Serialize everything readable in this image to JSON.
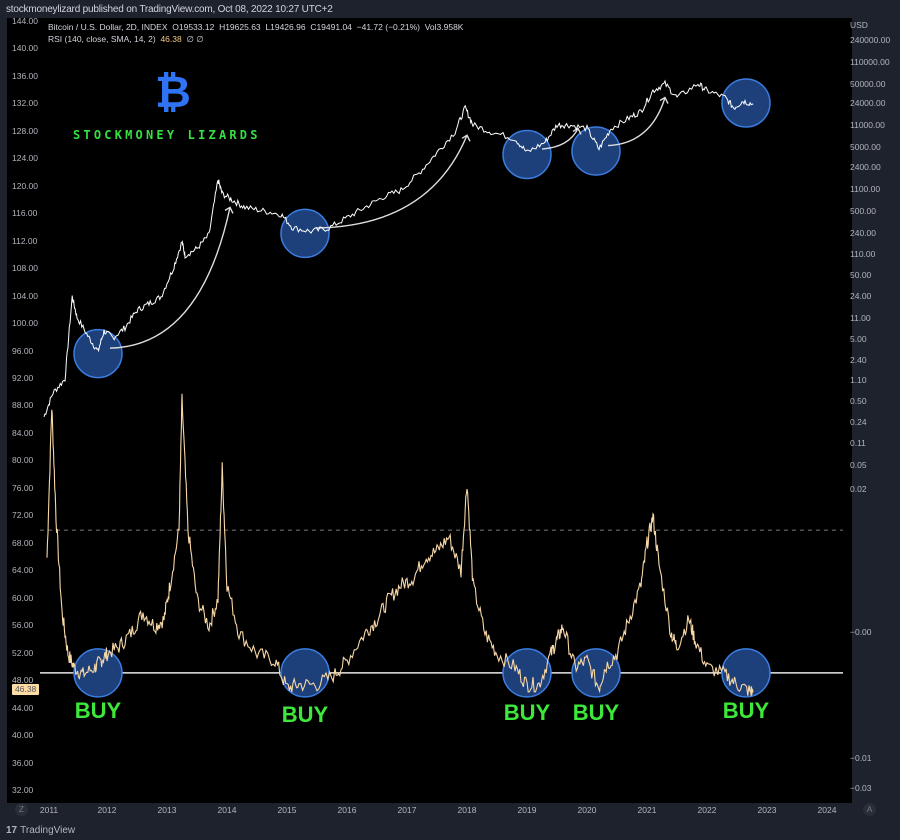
{
  "header": {
    "publisher": "stockmoneylizard published on TradingView.com, Oct 08, 2022 10:27 UTC+2"
  },
  "legend": {
    "symbol": "Bitcoin / U.S. Dollar, 2D, INDEX",
    "open_label": "O",
    "open": "19533.12",
    "high_label": "H",
    "high": "19625.63",
    "low_label": "L",
    "low": "19426.96",
    "close_label": "C",
    "close": "19491.04",
    "change": "−41.72 (−0.21%)",
    "vol_label": "Vol",
    "vol": "3.958K",
    "rsi_label": "RSI (140, close, SMA, 14, 2)",
    "rsi_value": "46.38",
    "rsi_extra": "∅  ∅"
  },
  "branding": {
    "logo_glyph": "₿",
    "text": "STOCKMONEY LIZARDS"
  },
  "footer": {
    "logo_mark": "17",
    "logo_name": "TradingView",
    "left_button": "Z",
    "right_button": "A"
  },
  "rsi_badge": "46.38",
  "colors": {
    "background": "#000000",
    "price_line": "#ffffff",
    "rsi_line": "#f7d7a6",
    "circle_fill": "#1d3f7a",
    "circle_stroke": "#3a7de0",
    "buy_text": "#3ee83a",
    "btc_logo": "#2f74f5",
    "brand_text": "#35e040"
  },
  "chart_data": {
    "type": "line",
    "title": "Bitcoin / U.S. Dollar, 2D, INDEX with RSI (140, close, SMA, 14, 2)",
    "xlabel": "",
    "ylabel_left": "RSI scale",
    "ylabel_right": "USD (log)",
    "x_ticks": [
      "2011",
      "2012",
      "2013",
      "2014",
      "2015",
      "2016",
      "2017",
      "2018",
      "2019",
      "2020",
      "2021",
      "2022",
      "2023",
      "2024"
    ],
    "left_axis_ticks": [
      "144.00",
      "140.00",
      "136.00",
      "132.00",
      "128.00",
      "124.00",
      "120.00",
      "116.00",
      "112.00",
      "108.00",
      "104.00",
      "100.00",
      "96.00",
      "92.00",
      "88.00",
      "84.00",
      "80.00",
      "76.00",
      "72.00",
      "68.00",
      "64.00",
      "60.00",
      "56.00",
      "52.00",
      "48.00",
      "44.00",
      "40.00",
      "36.00",
      "32.00"
    ],
    "right_axis_unit": "USD",
    "right_axis_ticks": [
      "240000.00",
      "110000.00",
      "50000.00",
      "24000.00",
      "11000.00",
      "5000.00",
      "2400.00",
      "1100.00",
      "500.00",
      "240.00",
      "110.00",
      "50.00",
      "24.00",
      "11.00",
      "5.00",
      "2.40",
      "1.10",
      "0.50",
      "0.24",
      "0.11",
      "0.05",
      "0.02",
      "−0.00",
      "−0.01",
      "−0.03"
    ],
    "ylim_left": [
      32,
      144
    ],
    "grid": false,
    "reference_lines": [
      {
        "name": "RSI overbought (dashed)",
        "value": 70
      },
      {
        "name": "RSI buy line (solid)",
        "value": 49.2
      }
    ],
    "series": [
      {
        "name": "BTC price (left-scale position)",
        "x": [
          2010.95,
          2011.1,
          2011.3,
          2011.42,
          2011.5,
          2011.7,
          2011.85,
          2011.95,
          2012.1,
          2012.3,
          2012.5,
          2012.7,
          2012.9,
          2013.1,
          2013.25,
          2013.3,
          2013.5,
          2013.7,
          2013.85,
          2013.92,
          2014.1,
          2014.3,
          2014.6,
          2014.9,
          2015.1,
          2015.4,
          2015.7,
          2016.0,
          2016.3,
          2016.6,
          2016.9,
          2017.2,
          2017.5,
          2017.8,
          2017.97,
          2018.1,
          2018.4,
          2018.8,
          2019.0,
          2019.3,
          2019.5,
          2019.7,
          2020.0,
          2020.2,
          2020.4,
          2020.7,
          2020.9,
          2021.1,
          2021.3,
          2021.5,
          2021.85,
          2022.0,
          2022.3,
          2022.45,
          2022.6,
          2022.77
        ],
        "values": [
          86.5,
          90,
          92,
          104,
          101,
          98,
          96,
          99,
          98,
          99.5,
          102,
          103,
          104,
          108,
          112,
          110,
          111,
          113,
          121,
          119,
          118,
          117,
          116.5,
          116,
          114,
          113.5,
          114,
          115.5,
          117,
          118.5,
          119.5,
          122,
          125,
          128,
          131.5,
          129,
          128,
          127,
          125,
          126.5,
          129,
          129,
          128.5,
          125.5,
          128.5,
          130,
          131,
          134,
          135,
          133,
          135,
          134,
          133,
          131.5,
          132.5,
          132
        ]
      },
      {
        "name": "RSI (140)",
        "x": [
          2011.0,
          2011.08,
          2011.15,
          2011.25,
          2011.35,
          2011.45,
          2011.6,
          2011.8,
          2011.9,
          2012.0,
          2012.2,
          2012.4,
          2012.6,
          2012.8,
          2012.95,
          2013.05,
          2013.2,
          2013.25,
          2013.35,
          2013.5,
          2013.7,
          2013.85,
          2013.92,
          2014.0,
          2014.2,
          2014.5,
          2014.8,
          2015.0,
          2015.2,
          2015.5,
          2015.8,
          2016.0,
          2016.3,
          2016.5,
          2016.7,
          2016.9,
          2017.1,
          2017.3,
          2017.5,
          2017.7,
          2017.9,
          2018.0,
          2018.1,
          2018.3,
          2018.5,
          2018.8,
          2019.0,
          2019.2,
          2019.4,
          2019.5,
          2019.6,
          2019.8,
          2020.0,
          2020.2,
          2020.3,
          2020.5,
          2020.7,
          2020.9,
          2021.0,
          2021.1,
          2021.2,
          2021.4,
          2021.5,
          2021.7,
          2021.8,
          2022.0,
          2022.3,
          2022.5,
          2022.7,
          2022.77
        ],
        "values": [
          66,
          88,
          72,
          58,
          52,
          50,
          49,
          50,
          51,
          52,
          53,
          55,
          58,
          56,
          57,
          62,
          70,
          89,
          70,
          60,
          56,
          60,
          79,
          62,
          55,
          52,
          51,
          47,
          47.5,
          47.5,
          49,
          51,
          55,
          57,
          60,
          62,
          63,
          66,
          67,
          69,
          64,
          77,
          62,
          55,
          52,
          50,
          47.5,
          47.5,
          52,
          54,
          56,
          50,
          51,
          47,
          50,
          52,
          57,
          62,
          68,
          72,
          65,
          55,
          53,
          57,
          54,
          50,
          49,
          47.5,
          46.6,
          46.4
        ]
      }
    ],
    "annotations": [
      {
        "type": "circle",
        "panel": "price",
        "year": 2011.85
      },
      {
        "type": "circle",
        "panel": "price",
        "year": 2015.3
      },
      {
        "type": "circle",
        "panel": "price",
        "year": 2019.0
      },
      {
        "type": "circle",
        "panel": "price",
        "year": 2020.15
      },
      {
        "type": "circle",
        "panel": "price",
        "year": 2022.65
      },
      {
        "type": "circle",
        "panel": "rsi",
        "year": 2011.85,
        "label": "BUY"
      },
      {
        "type": "circle",
        "panel": "rsi",
        "year": 2015.3,
        "label": "BUY"
      },
      {
        "type": "circle",
        "panel": "rsi",
        "year": 2019.0,
        "label": "BUY"
      },
      {
        "type": "circle",
        "panel": "rsi",
        "year": 2020.15,
        "label": "BUY"
      },
      {
        "type": "circle",
        "panel": "rsi",
        "year": 2022.65,
        "label": "BUY"
      }
    ]
  },
  "buy_labels": [
    "BUY",
    "BUY",
    "BUY",
    "BUY",
    "BUY"
  ]
}
